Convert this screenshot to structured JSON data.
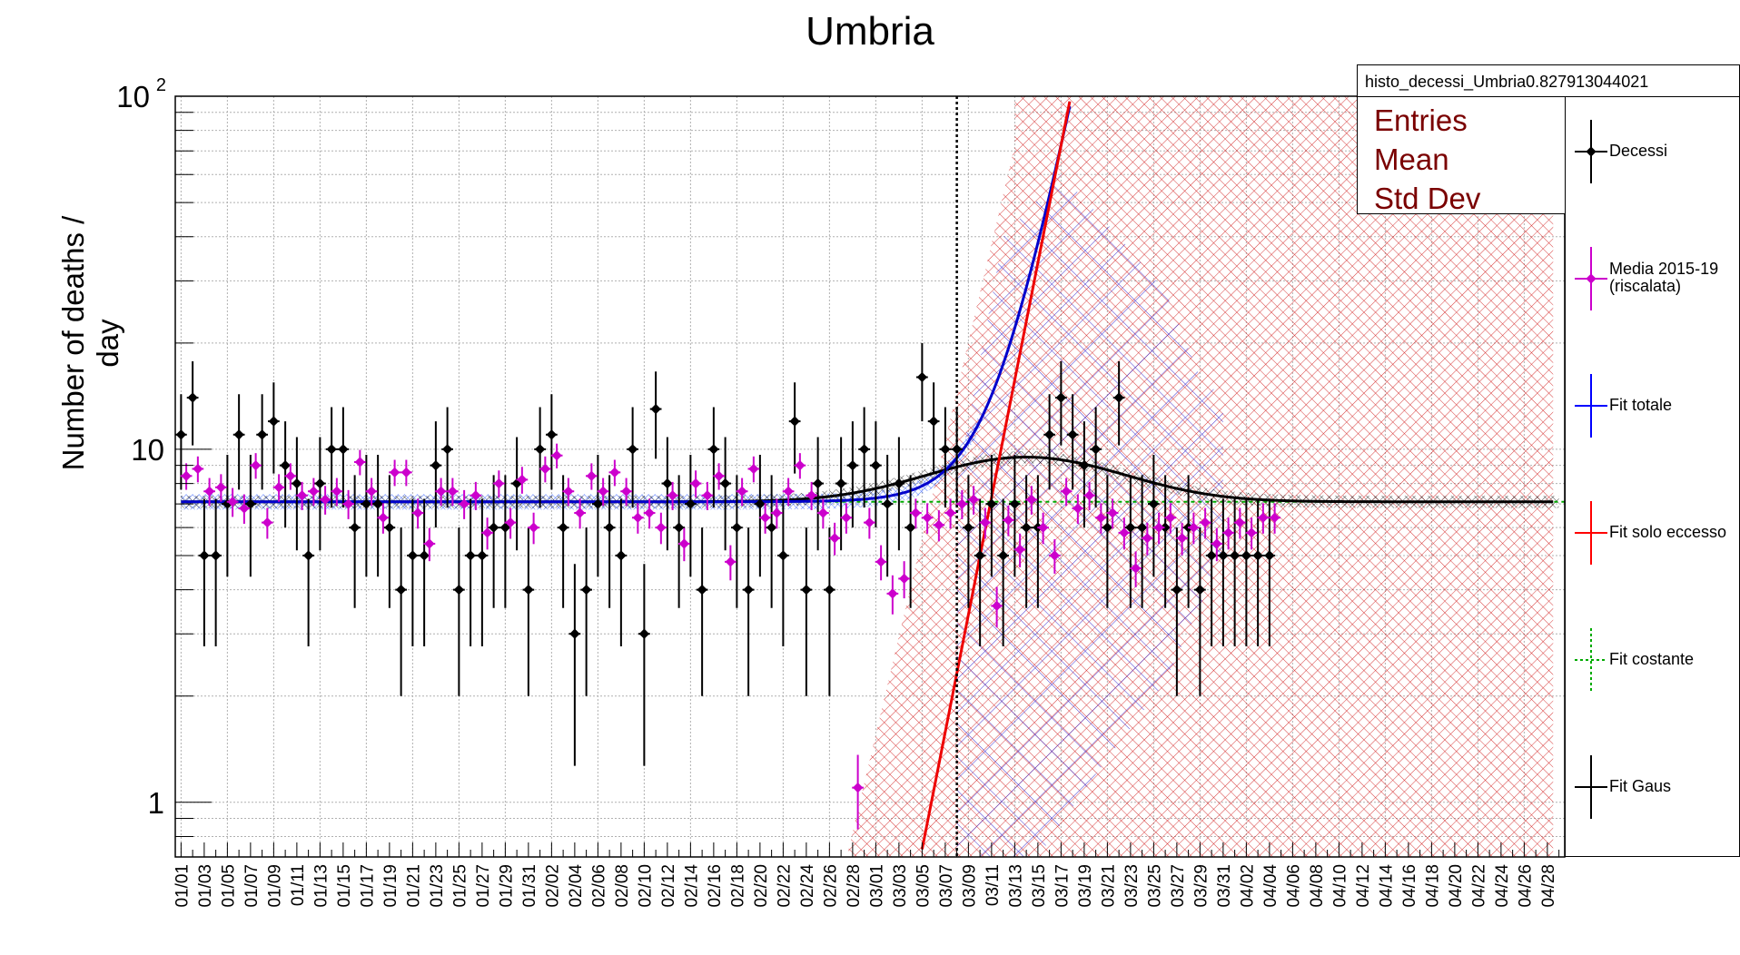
{
  "title": "Umbria",
  "ylabel": "Number of deaths / day",
  "stats": {
    "name": "histo_decessi_Umbria0.827913044021",
    "rows": [
      "Entries",
      "Mean",
      "Std Dev"
    ]
  },
  "legend": [
    {
      "label": "Decessi",
      "color": "#000000",
      "style": "marker"
    },
    {
      "label": "Media 2015-19 (riscalata)",
      "color": "#cc00cc",
      "style": "marker"
    },
    {
      "label": "Fit totale",
      "color": "#0000ff",
      "style": "line"
    },
    {
      "label": "Fit solo eccesso",
      "color": "#ff0000",
      "style": "line"
    },
    {
      "label": "Fit costante",
      "color": "#00aa00",
      "style": "dashed"
    },
    {
      "label": "Fit Gaus",
      "color": "#000000",
      "style": "line"
    }
  ],
  "chart_data": {
    "type": "scatter",
    "title": "Umbria",
    "ylabel": "Number of deaths / day",
    "yscale": "log",
    "ylim": [
      0.7,
      100
    ],
    "y_ticks": [
      "1",
      "10",
      "10^2"
    ],
    "x_ticks": [
      "01/01",
      "01/03",
      "01/05",
      "01/07",
      "01/09",
      "01/11",
      "01/13",
      "01/15",
      "01/17",
      "01/19",
      "01/21",
      "01/23",
      "01/25",
      "01/27",
      "01/29",
      "01/31",
      "02/02",
      "02/04",
      "02/06",
      "02/08",
      "02/10",
      "02/12",
      "02/14",
      "02/16",
      "02/18",
      "02/20",
      "02/22",
      "02/24",
      "02/26",
      "02/28",
      "03/01",
      "03/03",
      "03/05",
      "03/07",
      "03/09",
      "03/11",
      "03/13",
      "03/15",
      "03/17",
      "03/19",
      "03/21",
      "03/23",
      "03/25",
      "03/27",
      "03/29",
      "03/31",
      "04/02",
      "04/04",
      "04/06",
      "04/08",
      "04/10",
      "04/12",
      "04/14",
      "04/16",
      "04/18",
      "04/20",
      "04/22",
      "04/24",
      "04/26",
      "04/28"
    ],
    "grid": true,
    "vertical_marker_day": 68,
    "series": [
      {
        "name": "Decessi",
        "color": "#000000",
        "x": [
          1,
          2,
          3,
          4,
          5,
          6,
          7,
          8,
          9,
          10,
          11,
          12,
          13,
          14,
          15,
          16,
          17,
          18,
          19,
          20,
          21,
          22,
          23,
          24,
          25,
          26,
          27,
          28,
          29,
          30,
          31,
          32,
          33,
          34,
          35,
          36,
          37,
          38,
          39,
          40,
          41,
          42,
          43,
          44,
          45,
          46,
          47,
          48,
          49,
          50,
          51,
          52,
          53,
          54,
          55,
          56,
          57,
          58,
          59,
          60,
          61,
          62,
          63,
          64,
          65,
          66,
          67,
          68,
          69,
          70,
          71,
          72,
          73,
          74,
          75,
          76,
          77,
          78,
          79,
          80,
          81,
          82,
          83,
          84,
          85,
          86,
          87,
          88,
          89,
          90,
          91,
          92,
          93,
          94,
          95
        ],
        "values": [
          11,
          14,
          5,
          5,
          7,
          11,
          7,
          11,
          12,
          9,
          8,
          5,
          8,
          10,
          10,
          6,
          7,
          7,
          6,
          4,
          5,
          5,
          9,
          10,
          4,
          5,
          5,
          6,
          6,
          8,
          4,
          10,
          11,
          6,
          3,
          4,
          7,
          6,
          5,
          10,
          3,
          13,
          8,
          6,
          7,
          4,
          10,
          8,
          6,
          4,
          7,
          6,
          5,
          12,
          4,
          8,
          4,
          8,
          9,
          10,
          9,
          7,
          8,
          6,
          16,
          12,
          10,
          10,
          6,
          5,
          7,
          5,
          7,
          6,
          6,
          11,
          14,
          11,
          9,
          10,
          6,
          14,
          6,
          6,
          7,
          6,
          4,
          6,
          4,
          5,
          5,
          5,
          5,
          5,
          5
        ]
      },
      {
        "name": "Media 2015-19 (riscalata)",
        "color": "#cc00cc",
        "x": [
          1,
          2,
          3,
          4,
          5,
          6,
          7,
          8,
          9,
          10,
          11,
          12,
          13,
          14,
          15,
          16,
          17,
          18,
          19,
          20,
          21,
          22,
          23,
          24,
          25,
          26,
          27,
          28,
          29,
          30,
          31,
          32,
          33,
          34,
          35,
          36,
          37,
          38,
          39,
          40,
          41,
          42,
          43,
          44,
          45,
          46,
          47,
          48,
          49,
          50,
          51,
          52,
          53,
          54,
          55,
          56,
          57,
          58,
          59,
          60,
          61,
          62,
          63,
          64,
          65,
          66,
          67,
          68,
          69,
          70,
          71,
          72,
          73,
          74,
          75,
          76,
          77,
          78,
          79,
          80,
          81,
          82,
          83,
          84,
          85,
          86,
          87,
          88,
          89,
          90,
          91,
          92,
          93,
          94,
          95
        ],
        "values": [
          8.4,
          8.8,
          7.6,
          7.8,
          7.1,
          6.8,
          9.0,
          6.2,
          7.8,
          8.4,
          7.4,
          7.6,
          7.2,
          7.6,
          7.0,
          9.2,
          7.6,
          6.4,
          8.6,
          8.6,
          6.6,
          5.4,
          7.6,
          7.6,
          7.0,
          7.4,
          5.8,
          8.0,
          6.2,
          8.2,
          6.0,
          8.8,
          9.6,
          7.6,
          6.6,
          8.4,
          7.6,
          8.6,
          7.6,
          6.4,
          6.6,
          6.0,
          7.4,
          5.4,
          8.0,
          7.4,
          8.4,
          4.8,
          7.6,
          8.8,
          6.4,
          6.6,
          7.6,
          9.0,
          7.4,
          6.6,
          5.6,
          6.4,
          1.1,
          6.2,
          4.8,
          3.9,
          4.3,
          6.6,
          6.4,
          6.1,
          6.6,
          7.0,
          7.2,
          6.2,
          3.6,
          6.3,
          5.2,
          7.2,
          6.0,
          5.0,
          7.6,
          6.8,
          7.4,
          6.4,
          6.6,
          5.8,
          4.6,
          5.6,
          6.0,
          6.4,
          5.6,
          6.0,
          6.2,
          5.4,
          5.8,
          6.2,
          5.8,
          6.4,
          6.4
        ]
      }
    ],
    "fits": {
      "constant_level": 7.1,
      "gaus_peak": 9.5,
      "gaus_peak_day": 74
    }
  }
}
